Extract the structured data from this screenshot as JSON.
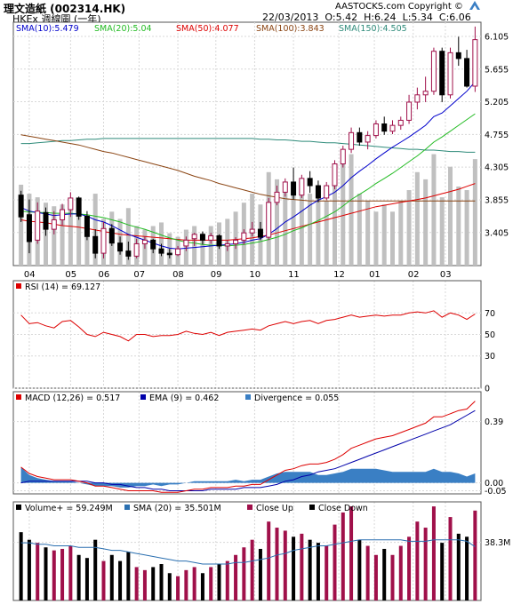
{
  "header": {
    "title": "理文造紙 (002314.HK)",
    "subtitle": "HKEx  週線圖 (一年)",
    "brand": "AASTOCKS.com Copyright ©",
    "date": "22/03/2013",
    "open": "O:5.42",
    "high": "H:6.24",
    "low": "L:5.34",
    "close": "C:6.06"
  },
  "colors": {
    "up": "#a0104a",
    "down": "#000000",
    "sma10": "#0000cc",
    "sma20": "#22bb22",
    "sma50": "#dd0000",
    "sma100": "#8b4513",
    "sma150": "#2e8b7a",
    "rsi": "#dd0000",
    "macd": "#dd0000",
    "ema": "#0000aa",
    "divergence": "#3a7fc4",
    "volume_sma": "#2a6fb0",
    "grid": "#d8d8d8"
  },
  "price_legend": [
    {
      "label": "SMA(10):5.479",
      "color": "#0000cc"
    },
    {
      "label": "SMA(20):5.04",
      "color": "#22bb22"
    },
    {
      "label": "SMA(50):4.077",
      "color": "#dd0000"
    },
    {
      "label": "SMA(100):3.843",
      "color": "#8b4513"
    },
    {
      "label": "SMA(150):4.505",
      "color": "#2e8b7a"
    }
  ],
  "rsi_legend": "RSI (14) = 69.127",
  "macd_legend": [
    {
      "label": "MACD (12,26) = 0.517",
      "color": "#dd0000"
    },
    {
      "label": "EMA (9) = 0.462",
      "color": "#0000aa"
    },
    {
      "label": "Divergence = 0.055",
      "color": "#3a7fc4"
    }
  ],
  "volume_legend": [
    {
      "label": "Volume+ = 59.249M",
      "color": "#000000"
    },
    {
      "label": "SMA (20) = 35.501M",
      "color": "#2a6fb0"
    },
    {
      "label": "Close Up",
      "color": "#a0104a"
    },
    {
      "label": "Close Down",
      "color": "#000000"
    }
  ],
  "chart_data": {
    "type": "candlestick",
    "price_axis": {
      "ticks": [
        "6.105",
        "5.655",
        "5.205",
        "4.755",
        "4.305",
        "3.855",
        "3.405"
      ],
      "ylim": [
        2.95,
        6.3
      ]
    },
    "month_labels": [
      "04",
      "05",
      "06",
      "07",
      "08",
      "09",
      "10",
      "11",
      "12",
      "01",
      "02",
      "03"
    ],
    "candles": [
      {
        "o": 3.92,
        "h": 3.98,
        "l": 3.55,
        "c": 3.62,
        "v": 45
      },
      {
        "o": 3.65,
        "h": 3.86,
        "l": 3.12,
        "c": 3.28,
        "v": 40
      },
      {
        "o": 3.3,
        "h": 3.82,
        "l": 3.25,
        "c": 3.7,
        "v": 38
      },
      {
        "o": 3.68,
        "h": 3.75,
        "l": 3.36,
        "c": 3.45,
        "v": 35
      },
      {
        "o": 3.45,
        "h": 3.7,
        "l": 3.38,
        "c": 3.58,
        "v": 33
      },
      {
        "o": 3.58,
        "h": 3.8,
        "l": 3.5,
        "c": 3.72,
        "v": 34
      },
      {
        "o": 3.72,
        "h": 3.96,
        "l": 3.62,
        "c": 3.88,
        "v": 36
      },
      {
        "o": 3.88,
        "h": 3.9,
        "l": 3.58,
        "c": 3.63,
        "v": 30
      },
      {
        "o": 3.63,
        "h": 3.7,
        "l": 3.3,
        "c": 3.35,
        "v": 28
      },
      {
        "o": 3.35,
        "h": 3.45,
        "l": 3.05,
        "c": 3.12,
        "v": 40
      },
      {
        "o": 3.12,
        "h": 3.55,
        "l": 3.05,
        "c": 3.46,
        "v": 26
      },
      {
        "o": 3.46,
        "h": 3.52,
        "l": 3.22,
        "c": 3.26,
        "v": 30
      },
      {
        "o": 3.26,
        "h": 3.35,
        "l": 3.1,
        "c": 3.15,
        "v": 26
      },
      {
        "o": 3.15,
        "h": 3.28,
        "l": 3.03,
        "c": 3.08,
        "v": 32
      },
      {
        "o": 3.08,
        "h": 3.32,
        "l": 3.05,
        "c": 3.25,
        "v": 22
      },
      {
        "o": 3.25,
        "h": 3.35,
        "l": 3.18,
        "c": 3.3,
        "v": 20
      },
      {
        "o": 3.3,
        "h": 3.32,
        "l": 3.12,
        "c": 3.18,
        "v": 22
      },
      {
        "o": 3.18,
        "h": 3.25,
        "l": 3.08,
        "c": 3.12,
        "v": 24
      },
      {
        "o": 3.12,
        "h": 3.18,
        "l": 3.05,
        "c": 3.1,
        "v": 18
      },
      {
        "o": 3.1,
        "h": 3.22,
        "l": 3.08,
        "c": 3.18,
        "v": 16
      },
      {
        "o": 3.22,
        "h": 3.35,
        "l": 3.15,
        "c": 3.3,
        "v": 20
      },
      {
        "o": 3.32,
        "h": 3.4,
        "l": 3.22,
        "c": 3.38,
        "v": 22
      },
      {
        "o": 3.38,
        "h": 3.42,
        "l": 3.24,
        "c": 3.3,
        "v": 18
      },
      {
        "o": 3.3,
        "h": 3.4,
        "l": 3.25,
        "c": 3.36,
        "v": 22
      },
      {
        "o": 3.36,
        "h": 3.38,
        "l": 3.18,
        "c": 3.22,
        "v": 24
      },
      {
        "o": 3.22,
        "h": 3.3,
        "l": 3.15,
        "c": 3.25,
        "v": 26
      },
      {
        "o": 3.25,
        "h": 3.34,
        "l": 3.18,
        "c": 3.3,
        "v": 30
      },
      {
        "o": 3.3,
        "h": 3.45,
        "l": 3.24,
        "c": 3.4,
        "v": 35
      },
      {
        "o": 3.4,
        "h": 3.55,
        "l": 3.35,
        "c": 3.45,
        "v": 40
      },
      {
        "o": 3.45,
        "h": 3.55,
        "l": 3.3,
        "c": 3.34,
        "v": 34
      },
      {
        "o": 3.34,
        "h": 3.88,
        "l": 3.3,
        "c": 3.82,
        "v": 52
      },
      {
        "o": 3.82,
        "h": 4.05,
        "l": 3.78,
        "c": 3.96,
        "v": 48
      },
      {
        "o": 3.96,
        "h": 4.15,
        "l": 3.9,
        "c": 4.1,
        "v": 46
      },
      {
        "o": 4.1,
        "h": 4.3,
        "l": 3.86,
        "c": 3.92,
        "v": 42
      },
      {
        "o": 3.92,
        "h": 4.2,
        "l": 3.88,
        "c": 4.15,
        "v": 44
      },
      {
        "o": 4.15,
        "h": 4.25,
        "l": 3.95,
        "c": 4.05,
        "v": 40
      },
      {
        "o": 4.05,
        "h": 4.12,
        "l": 3.82,
        "c": 3.88,
        "v": 38
      },
      {
        "o": 3.88,
        "h": 4.1,
        "l": 3.85,
        "c": 4.05,
        "v": 36
      },
      {
        "o": 4.05,
        "h": 4.4,
        "l": 4.0,
        "c": 4.35,
        "v": 50
      },
      {
        "o": 4.35,
        "h": 4.6,
        "l": 4.3,
        "c": 4.55,
        "v": 58
      },
      {
        "o": 4.55,
        "h": 4.85,
        "l": 4.5,
        "c": 4.78,
        "v": 62
      },
      {
        "o": 4.78,
        "h": 4.85,
        "l": 4.6,
        "c": 4.65,
        "v": 40
      },
      {
        "o": 4.65,
        "h": 4.8,
        "l": 4.55,
        "c": 4.74,
        "v": 36
      },
      {
        "o": 4.74,
        "h": 4.95,
        "l": 4.7,
        "c": 4.9,
        "v": 30
      },
      {
        "o": 4.9,
        "h": 5.0,
        "l": 4.75,
        "c": 4.8,
        "v": 34
      },
      {
        "o": 4.8,
        "h": 4.95,
        "l": 4.76,
        "c": 4.88,
        "v": 30
      },
      {
        "o": 4.88,
        "h": 5.0,
        "l": 4.82,
        "c": 4.95,
        "v": 36
      },
      {
        "o": 4.95,
        "h": 5.3,
        "l": 4.9,
        "c": 5.2,
        "v": 42
      },
      {
        "o": 5.2,
        "h": 5.4,
        "l": 5.1,
        "c": 5.3,
        "v": 52
      },
      {
        "o": 5.3,
        "h": 5.55,
        "l": 5.2,
        "c": 5.35,
        "v": 48
      },
      {
        "o": 5.35,
        "h": 5.95,
        "l": 5.3,
        "c": 5.9,
        "v": 62
      },
      {
        "o": 5.9,
        "h": 5.95,
        "l": 5.2,
        "c": 5.3,
        "v": 38
      },
      {
        "o": 5.3,
        "h": 5.95,
        "l": 5.25,
        "c": 5.88,
        "v": 55
      },
      {
        "o": 5.88,
        "h": 6.1,
        "l": 5.7,
        "c": 5.8,
        "v": 44
      },
      {
        "o": 5.8,
        "h": 5.92,
        "l": 5.4,
        "c": 5.42,
        "v": 42
      },
      {
        "o": 5.42,
        "h": 6.24,
        "l": 5.34,
        "c": 6.06,
        "v": 59.249
      }
    ],
    "sma10": [
      3.75,
      3.7,
      3.68,
      3.66,
      3.64,
      3.65,
      3.66,
      3.66,
      3.63,
      3.58,
      3.55,
      3.5,
      3.44,
      3.38,
      3.34,
      3.3,
      3.26,
      3.22,
      3.19,
      3.18,
      3.19,
      3.2,
      3.21,
      3.22,
      3.23,
      3.24,
      3.25,
      3.27,
      3.3,
      3.32,
      3.38,
      3.46,
      3.55,
      3.62,
      3.7,
      3.78,
      3.85,
      3.9,
      3.96,
      4.05,
      4.16,
      4.25,
      4.33,
      4.42,
      4.5,
      4.58,
      4.65,
      4.72,
      4.8,
      4.88,
      5.0,
      5.05,
      5.15,
      5.25,
      5.35,
      5.48
    ],
    "sma20": [
      3.7,
      3.69,
      3.68,
      3.68,
      3.67,
      3.67,
      3.67,
      3.66,
      3.65,
      3.63,
      3.61,
      3.58,
      3.55,
      3.51,
      3.48,
      3.45,
      3.41,
      3.37,
      3.33,
      3.3,
      3.27,
      3.26,
      3.24,
      3.23,
      3.23,
      3.22,
      3.23,
      3.24,
      3.26,
      3.28,
      3.31,
      3.34,
      3.38,
      3.43,
      3.47,
      3.52,
      3.57,
      3.63,
      3.69,
      3.77,
      3.86,
      3.93,
      4.0,
      4.08,
      4.15,
      4.22,
      4.3,
      4.38,
      4.46,
      4.55,
      4.65,
      4.72,
      4.8,
      4.88,
      4.96,
      5.04
    ],
    "sma50": [
      3.58,
      3.56,
      3.55,
      3.54,
      3.52,
      3.5,
      3.49,
      3.48,
      3.46,
      3.44,
      3.42,
      3.4,
      3.38,
      3.37,
      3.36,
      3.35,
      3.34,
      3.33,
      3.32,
      3.31,
      3.3,
      3.3,
      3.3,
      3.3,
      3.3,
      3.3,
      3.31,
      3.32,
      3.33,
      3.35,
      3.37,
      3.4,
      3.43,
      3.46,
      3.49,
      3.52,
      3.55,
      3.58,
      3.61,
      3.64,
      3.67,
      3.7,
      3.73,
      3.76,
      3.78,
      3.8,
      3.82,
      3.84,
      3.86,
      3.88,
      3.91,
      3.94,
      3.97,
      4.0,
      4.04,
      4.08
    ],
    "sma100": [
      4.75,
      4.73,
      4.71,
      4.69,
      4.67,
      4.65,
      4.63,
      4.61,
      4.58,
      4.55,
      4.52,
      4.5,
      4.47,
      4.44,
      4.41,
      4.38,
      4.35,
      4.32,
      4.29,
      4.26,
      4.22,
      4.18,
      4.15,
      4.12,
      4.08,
      4.05,
      4.02,
      3.99,
      3.96,
      3.93,
      3.91,
      3.89,
      3.87,
      3.86,
      3.85,
      3.84,
      3.84,
      3.84,
      3.84,
      3.84,
      3.84,
      3.84,
      3.84,
      3.84,
      3.84,
      3.84,
      3.84,
      3.84,
      3.84,
      3.84,
      3.84,
      3.84,
      3.84,
      3.84,
      3.84,
      3.84
    ],
    "sma150": [
      4.63,
      4.63,
      4.64,
      4.65,
      4.66,
      4.67,
      4.67,
      4.68,
      4.69,
      4.69,
      4.7,
      4.7,
      4.7,
      4.7,
      4.7,
      4.7,
      4.7,
      4.7,
      4.7,
      4.7,
      4.7,
      4.7,
      4.7,
      4.7,
      4.7,
      4.7,
      4.7,
      4.7,
      4.7,
      4.69,
      4.69,
      4.68,
      4.68,
      4.67,
      4.66,
      4.66,
      4.65,
      4.64,
      4.64,
      4.63,
      4.62,
      4.61,
      4.6,
      4.59,
      4.58,
      4.57,
      4.56,
      4.55,
      4.55,
      4.54,
      4.54,
      4.53,
      4.52,
      4.52,
      4.51,
      4.51
    ],
    "rsi_axis": {
      "ticks": [
        "70",
        "50",
        "30",
        "0"
      ],
      "ylim": [
        0,
        100
      ]
    },
    "rsi": [
      68,
      60,
      61,
      58,
      56,
      62,
      63,
      57,
      50,
      48,
      52,
      50,
      48,
      44,
      50,
      50,
      48,
      49,
      49,
      50,
      53,
      51,
      50,
      52,
      49,
      52,
      53,
      54,
      55,
      54,
      58,
      60,
      62,
      60,
      62,
      63,
      60,
      63,
      64,
      66,
      68,
      66,
      67,
      68,
      67,
      68,
      68,
      70,
      71,
      70,
      72,
      66,
      70,
      68,
      64,
      69
    ],
    "macd_axis": {
      "ticks": [
        "0.39",
        "0.00",
        "-0.05"
      ],
      "ylim": [
        -0.07,
        0.58
      ]
    },
    "macd": [
      0.1,
      0.06,
      0.04,
      0.03,
      0.02,
      0.02,
      0.02,
      0.01,
      0.0,
      -0.02,
      -0.02,
      -0.03,
      -0.04,
      -0.05,
      -0.05,
      -0.05,
      -0.05,
      -0.06,
      -0.06,
      -0.06,
      -0.05,
      -0.04,
      -0.04,
      -0.03,
      -0.03,
      -0.03,
      -0.02,
      -0.02,
      -0.01,
      -0.01,
      0.02,
      0.05,
      0.08,
      0.09,
      0.11,
      0.12,
      0.12,
      0.13,
      0.15,
      0.18,
      0.22,
      0.24,
      0.26,
      0.28,
      0.29,
      0.3,
      0.32,
      0.34,
      0.36,
      0.38,
      0.42,
      0.42,
      0.44,
      0.46,
      0.47,
      0.52
    ],
    "macd_ema": [
      0.0,
      0.01,
      0.01,
      0.01,
      0.01,
      0.01,
      0.01,
      0.01,
      0.01,
      0.0,
      0.0,
      -0.01,
      -0.01,
      -0.02,
      -0.03,
      -0.03,
      -0.04,
      -0.04,
      -0.05,
      -0.05,
      -0.05,
      -0.05,
      -0.05,
      -0.04,
      -0.04,
      -0.04,
      -0.04,
      -0.03,
      -0.03,
      -0.03,
      -0.02,
      -0.01,
      0.01,
      0.02,
      0.04,
      0.05,
      0.07,
      0.08,
      0.09,
      0.11,
      0.13,
      0.15,
      0.17,
      0.19,
      0.21,
      0.23,
      0.25,
      0.27,
      0.29,
      0.31,
      0.33,
      0.35,
      0.37,
      0.4,
      0.43,
      0.46
    ],
    "volume_axis": {
      "ticks": [
        "38.3M"
      ],
      "ymax": 65
    },
    "volume_sma": [
      38,
      38,
      37,
      37,
      36,
      36,
      36,
      35,
      35,
      35,
      34,
      33,
      33,
      32,
      31,
      30,
      29,
      28,
      27,
      26,
      26,
      25,
      24,
      24,
      24,
      24,
      25,
      25,
      26,
      27,
      28,
      30,
      31,
      33,
      34,
      35,
      36,
      36,
      37,
      38,
      39,
      40,
      40,
      40,
      40,
      40,
      40,
      39,
      39,
      39,
      40,
      40,
      40,
      40,
      39,
      35.5
    ],
    "x_tick_index": [
      1,
      6,
      10,
      14.3,
      19,
      23.6,
      28.3,
      33,
      38.5,
      42.8,
      47.5,
      51.4
    ]
  }
}
